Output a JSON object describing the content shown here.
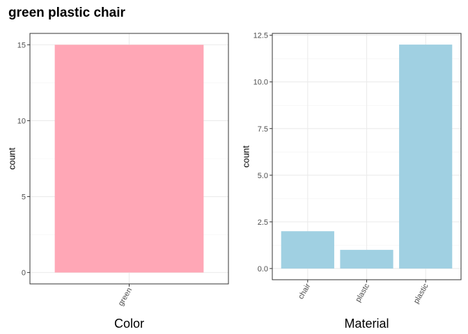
{
  "page": {
    "title": "green plastic chair"
  },
  "chart_data": [
    {
      "type": "bar",
      "title": "",
      "xlabel": "Color",
      "ylabel": "count",
      "categories": [
        "green"
      ],
      "values": [
        15
      ],
      "ylim": [
        -0.75,
        15.75
      ],
      "yticks": [
        0,
        5,
        10,
        15
      ],
      "ytick_labels": [
        "0",
        "5",
        "10",
        "15"
      ],
      "bar_color": "#FFA7B6",
      "grid": true,
      "legend": "none"
    },
    {
      "type": "bar",
      "title": "",
      "xlabel": "Material",
      "ylabel": "count",
      "categories": [
        "chair",
        "plastc",
        "plastic"
      ],
      "values": [
        2,
        1,
        12
      ],
      "ylim": [
        -0.6,
        12.6
      ],
      "yticks": [
        0,
        2.5,
        5,
        7.5,
        10,
        12.5
      ],
      "ytick_labels": [
        "0.0",
        "2.5",
        "5.0",
        "7.5",
        "10.0",
        "12.5"
      ],
      "bar_color": "#A0D0E2",
      "grid": true,
      "legend": "none"
    }
  ]
}
